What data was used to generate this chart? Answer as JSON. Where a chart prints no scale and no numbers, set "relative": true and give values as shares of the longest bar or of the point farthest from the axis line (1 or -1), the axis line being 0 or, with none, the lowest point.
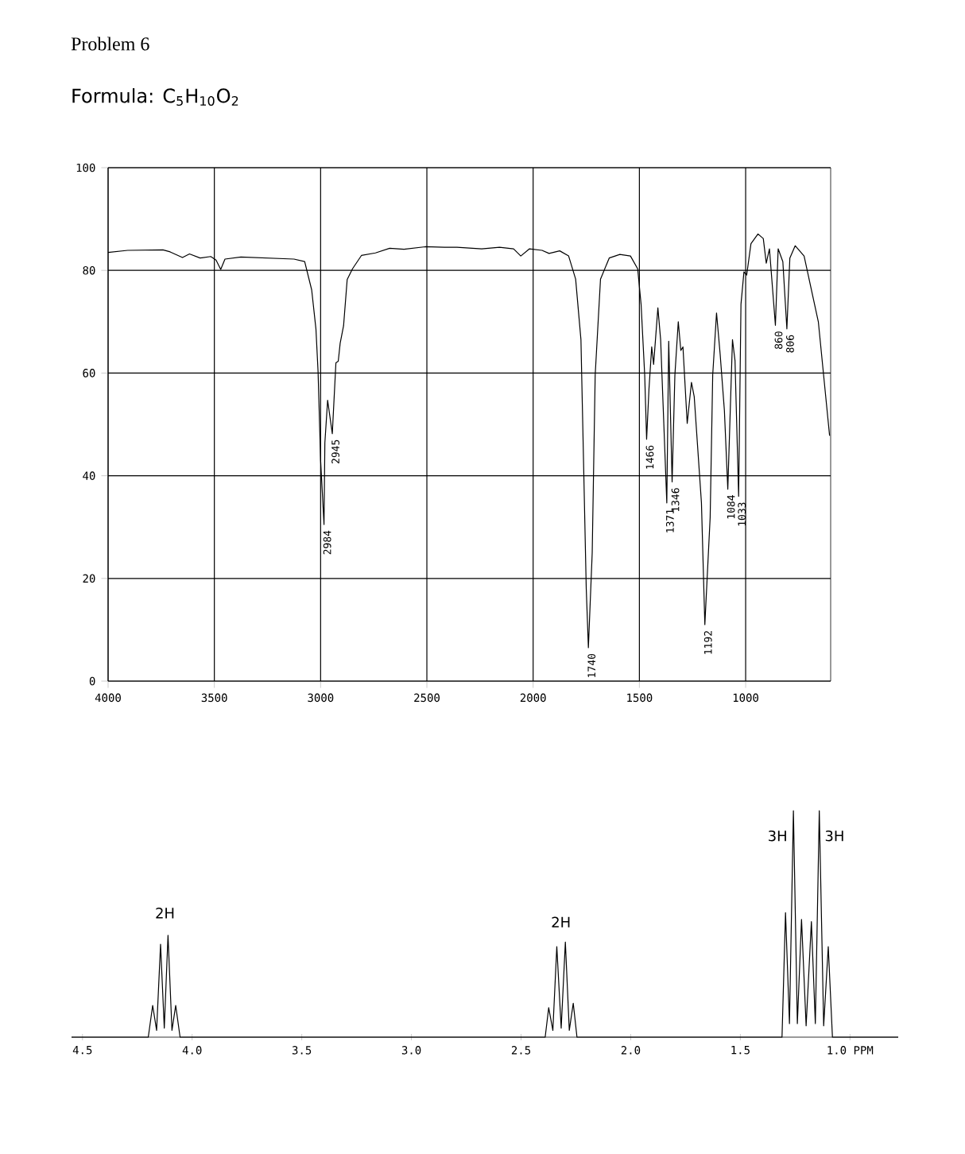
{
  "chart_data": [
    {
      "type": "line",
      "title": "Problem 6",
      "subtitle": "Formula: C$_{5}$H$_{10}$O$_{2}$",
      "color": "#000000",
      "x": [
        4000,
        3908,
        3742,
        3708,
        3650,
        3617,
        3567,
        3517,
        3492,
        3470,
        3450,
        3375,
        3125,
        3075,
        3042,
        3022,
        3012,
        3000,
        2984,
        2980,
        2967,
        2945,
        2928,
        2917,
        2908,
        2892,
        2875,
        2850,
        2808,
        2742,
        2675,
        2608,
        2508,
        2417,
        2358,
        2242,
        2158,
        2092,
        2058,
        2017,
        1958,
        1925,
        1875,
        1833,
        1800,
        1775,
        1750,
        1740,
        1722,
        1708,
        1683,
        1642,
        1592,
        1542,
        1508,
        1492,
        1475,
        1466,
        1455,
        1442,
        1433,
        1413,
        1400,
        1371,
        1362,
        1346,
        1333,
        1317,
        1305,
        1295,
        1275,
        1255,
        1242,
        1208,
        1192,
        1167,
        1155,
        1137,
        1120,
        1100,
        1084,
        1062,
        1050,
        1033,
        1022,
        1008,
        995,
        975,
        942,
        917,
        903,
        888,
        860,
        847,
        825,
        806,
        792,
        767,
        725,
        658,
        605
      ],
      "values": [
        83.5,
        83.9,
        84.0,
        83.6,
        82.5,
        83.2,
        82.4,
        82.7,
        82.0,
        80.2,
        82.2,
        82.6,
        82.2,
        81.7,
        76.2,
        68.6,
        60.3,
        43,
        30.5,
        46.4,
        54.7,
        48.2,
        62,
        62.3,
        65.8,
        69.2,
        78.2,
        80.3,
        82.9,
        83.4,
        84.3,
        84.1,
        84.6,
        84.5,
        84.5,
        84.2,
        84.5,
        84.2,
        82.8,
        84.2,
        83.9,
        83.3,
        83.8,
        82.8,
        78.3,
        66.5,
        18,
        6.5,
        25,
        59.6,
        78.3,
        82.4,
        83.1,
        82.8,
        80.3,
        73.4,
        59.6,
        47.1,
        56.8,
        65.1,
        61.7,
        72.7,
        66.5,
        34.7,
        66.2,
        38.8,
        59.6,
        70,
        64.4,
        65.1,
        50.2,
        58.2,
        55.4,
        34.7,
        11,
        31.9,
        59.6,
        71.7,
        63.7,
        52.7,
        37.4,
        66.5,
        62.4,
        36,
        73.4,
        79.7,
        79.1,
        85.2,
        87.1,
        86.2,
        81.4,
        84.2,
        69.3,
        84.2,
        81.7,
        68.6,
        82.4,
        84.8,
        82.8,
        70,
        47.8
      ],
      "xlim": [
        4000,
        600
      ],
      "ylim": [
        0,
        100
      ],
      "xticks": [
        4000,
        3500,
        3000,
        2500,
        2000,
        1500,
        1000
      ],
      "yticks": [
        0,
        20,
        40,
        60,
        80,
        100
      ],
      "grid": true,
      "annotations": [
        {
          "text": "2984",
          "x": 2984,
          "y": 30.5
        },
        {
          "text": "2945",
          "x": 2945,
          "y": 48.2
        },
        {
          "text": "1740",
          "x": 1740,
          "y": 6.5
        },
        {
          "text": "1466",
          "x": 1466,
          "y": 47.1
        },
        {
          "text": "1371",
          "x": 1371,
          "y": 34.7
        },
        {
          "text": "1346",
          "x": 1346,
          "y": 38.8
        },
        {
          "text": "1192",
          "x": 1192,
          "y": 11
        },
        {
          "text": "1084",
          "x": 1084,
          "y": 37.4
        },
        {
          "text": "1033",
          "x": 1033,
          "y": 36
        },
        {
          "text": "860",
          "x": 860,
          "y": 69.3
        },
        {
          "text": "806",
          "x": 806,
          "y": 68.6
        }
      ]
    },
    {
      "type": "line",
      "relative": true,
      "color": "#000000",
      "x": [
        4.55,
        4.2,
        4.18,
        4.162,
        4.144,
        4.127,
        4.11,
        4.092,
        4.075,
        4.055,
        2.39,
        2.374,
        2.355,
        2.337,
        2.317,
        2.298,
        2.28,
        2.262,
        2.245,
        1.31,
        1.294,
        1.276,
        1.258,
        1.24,
        1.221,
        1.2,
        1.176,
        1.158,
        1.14,
        1.12,
        1.099,
        1.08,
        0.78
      ],
      "values": [
        0,
        0,
        0.14,
        0.03,
        0.41,
        0.04,
        0.45,
        0.03,
        0.14,
        0,
        0,
        0.13,
        0.03,
        0.4,
        0.04,
        0.42,
        0.03,
        0.15,
        0,
        0,
        0.55,
        0.06,
        1.0,
        0.06,
        0.52,
        0.05,
        0.51,
        0.06,
        1.0,
        0.05,
        0.4,
        0,
        0
      ],
      "xlim": [
        4.55,
        0.78
      ],
      "xticks": [
        {
          "value": 4.5,
          "label": "4.5"
        },
        {
          "value": 4.0,
          "label": "4.0"
        },
        {
          "value": 3.5,
          "label": "3.5"
        },
        {
          "value": 3.0,
          "label": "3.0"
        },
        {
          "value": 2.5,
          "label": "2.5"
        },
        {
          "value": 2.0,
          "label": "2.0"
        },
        {
          "value": 1.5,
          "label": "1.5"
        },
        {
          "value": 1.0,
          "label": "1.0 PPM"
        }
      ],
      "tick_labels": "x",
      "annotations": [
        "2H",
        "2H",
        "3H",
        "3H"
      ]
    }
  ]
}
